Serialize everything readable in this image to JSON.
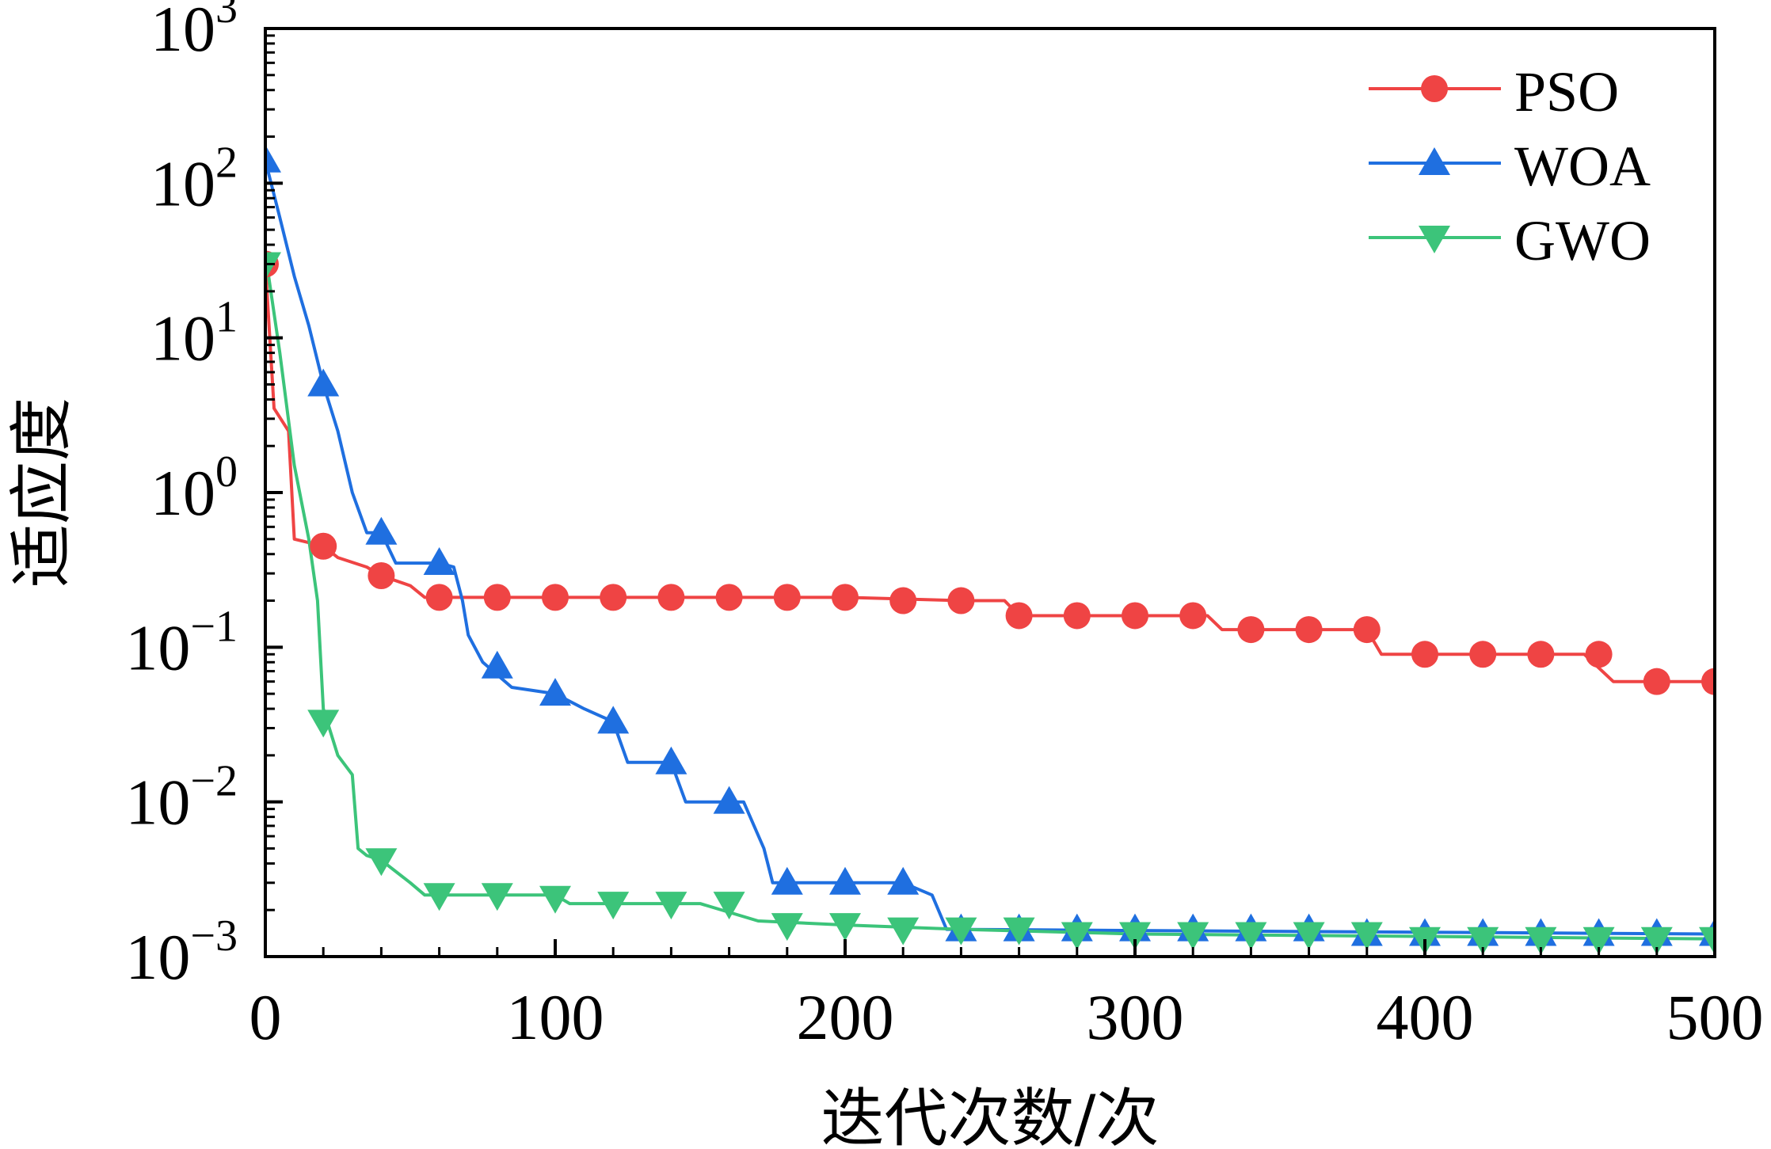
{
  "chart_data": {
    "type": "line",
    "xlabel": "迭代次数/次",
    "ylabel": "适应度",
    "xlim": [
      0,
      500
    ],
    "ylim": [
      0.001,
      1000
    ],
    "yscale": "log",
    "x_ticks": [
      0,
      100,
      200,
      300,
      400,
      500
    ],
    "y_ticks": [
      {
        "value": 1000,
        "base": "10",
        "exp": "3"
      },
      {
        "value": 100,
        "base": "10",
        "exp": "2"
      },
      {
        "value": 10,
        "base": "10",
        "exp": "1"
      },
      {
        "value": 1,
        "base": "10",
        "exp": "0"
      },
      {
        "value": 0.1,
        "base": "10",
        "exp": "−1"
      },
      {
        "value": 0.01,
        "base": "10",
        "exp": "−2"
      },
      {
        "value": 0.001,
        "base": "10",
        "exp": "−3"
      }
    ],
    "grid": false,
    "legend_position": "top-right",
    "series": [
      {
        "name": "PSO",
        "color": "#ef4444",
        "marker": "circle",
        "line": [
          [
            0,
            30
          ],
          [
            3,
            3.5
          ],
          [
            8,
            2.5
          ],
          [
            10,
            0.5
          ],
          [
            20,
            0.45
          ],
          [
            25,
            0.38
          ],
          [
            35,
            0.33
          ],
          [
            40,
            0.29
          ],
          [
            50,
            0.25
          ],
          [
            55,
            0.21
          ],
          [
            100,
            0.21
          ],
          [
            150,
            0.21
          ],
          [
            200,
            0.21
          ],
          [
            240,
            0.2
          ],
          [
            255,
            0.2
          ],
          [
            260,
            0.16
          ],
          [
            310,
            0.16
          ],
          [
            325,
            0.16
          ],
          [
            330,
            0.13
          ],
          [
            380,
            0.13
          ],
          [
            385,
            0.09
          ],
          [
            455,
            0.09
          ],
          [
            465,
            0.06
          ],
          [
            500,
            0.06
          ]
        ],
        "markers": [
          [
            0,
            30
          ],
          [
            20,
            0.45
          ],
          [
            40,
            0.29
          ],
          [
            60,
            0.21
          ],
          [
            80,
            0.21
          ],
          [
            100,
            0.21
          ],
          [
            120,
            0.21
          ],
          [
            140,
            0.21
          ],
          [
            160,
            0.21
          ],
          [
            180,
            0.21
          ],
          [
            200,
            0.21
          ],
          [
            220,
            0.2
          ],
          [
            240,
            0.2
          ],
          [
            260,
            0.16
          ],
          [
            280,
            0.16
          ],
          [
            300,
            0.16
          ],
          [
            320,
            0.16
          ],
          [
            340,
            0.13
          ],
          [
            360,
            0.13
          ],
          [
            380,
            0.13
          ],
          [
            400,
            0.09
          ],
          [
            420,
            0.09
          ],
          [
            440,
            0.09
          ],
          [
            460,
            0.09
          ],
          [
            480,
            0.06
          ],
          [
            500,
            0.06
          ]
        ]
      },
      {
        "name": "WOA",
        "color": "#1f6fe0",
        "marker": "triangle-up",
        "line": [
          [
            0,
            140
          ],
          [
            5,
            60
          ],
          [
            10,
            25
          ],
          [
            15,
            12
          ],
          [
            20,
            5
          ],
          [
            25,
            2.5
          ],
          [
            30,
            1
          ],
          [
            35,
            0.55
          ],
          [
            40,
            0.55
          ],
          [
            45,
            0.35
          ],
          [
            60,
            0.35
          ],
          [
            65,
            0.33
          ],
          [
            68,
            0.2
          ],
          [
            70,
            0.12
          ],
          [
            75,
            0.08
          ],
          [
            85,
            0.055
          ],
          [
            100,
            0.05
          ],
          [
            110,
            0.04
          ],
          [
            120,
            0.033
          ],
          [
            125,
            0.018
          ],
          [
            140,
            0.018
          ],
          [
            145,
            0.01
          ],
          [
            165,
            0.01
          ],
          [
            172,
            0.005
          ],
          [
            175,
            0.003
          ],
          [
            220,
            0.003
          ],
          [
            230,
            0.0025
          ],
          [
            235,
            0.0015
          ],
          [
            500,
            0.0014
          ]
        ],
        "markers": [
          [
            0,
            140
          ],
          [
            20,
            5
          ],
          [
            40,
            0.55
          ],
          [
            60,
            0.35
          ],
          [
            80,
            0.075
          ],
          [
            100,
            0.05
          ],
          [
            120,
            0.033
          ],
          [
            140,
            0.018
          ],
          [
            160,
            0.01
          ],
          [
            180,
            0.003
          ],
          [
            200,
            0.003
          ],
          [
            220,
            0.003
          ],
          [
            240,
            0.0015
          ],
          [
            260,
            0.0015
          ],
          [
            280,
            0.0015
          ],
          [
            300,
            0.0015
          ],
          [
            320,
            0.0015
          ],
          [
            340,
            0.0015
          ],
          [
            360,
            0.0015
          ],
          [
            380,
            0.0014
          ],
          [
            400,
            0.0014
          ],
          [
            420,
            0.0014
          ],
          [
            440,
            0.0014
          ],
          [
            460,
            0.0014
          ],
          [
            480,
            0.0014
          ],
          [
            500,
            0.0014
          ]
        ]
      },
      {
        "name": "GWO",
        "color": "#3cc47a",
        "marker": "triangle-down",
        "line": [
          [
            0,
            35
          ],
          [
            5,
            8
          ],
          [
            10,
            1.5
          ],
          [
            15,
            0.5
          ],
          [
            18,
            0.2
          ],
          [
            20,
            0.04
          ],
          [
            25,
            0.02
          ],
          [
            30,
            0.015
          ],
          [
            32,
            0.005
          ],
          [
            35,
            0.0045
          ],
          [
            40,
            0.0042
          ],
          [
            50,
            0.003
          ],
          [
            55,
            0.0025
          ],
          [
            100,
            0.0025
          ],
          [
            105,
            0.0022
          ],
          [
            150,
            0.0022
          ],
          [
            170,
            0.0017
          ],
          [
            200,
            0.0016
          ],
          [
            240,
            0.0015
          ],
          [
            300,
            0.0014
          ],
          [
            500,
            0.0013
          ]
        ],
        "markers": [
          [
            0,
            30
          ],
          [
            20,
            0.033
          ],
          [
            40,
            0.0042
          ],
          [
            60,
            0.0025
          ],
          [
            80,
            0.0025
          ],
          [
            100,
            0.0024
          ],
          [
            120,
            0.0022
          ],
          [
            140,
            0.0022
          ],
          [
            160,
            0.0022
          ],
          [
            180,
            0.0016
          ],
          [
            200,
            0.0016
          ],
          [
            220,
            0.0015
          ],
          [
            240,
            0.0015
          ],
          [
            260,
            0.0015
          ],
          [
            280,
            0.0014
          ],
          [
            300,
            0.0014
          ],
          [
            320,
            0.0014
          ],
          [
            340,
            0.0014
          ],
          [
            360,
            0.0014
          ],
          [
            380,
            0.0014
          ],
          [
            400,
            0.0013
          ],
          [
            420,
            0.0013
          ],
          [
            440,
            0.0013
          ],
          [
            460,
            0.0013
          ],
          [
            480,
            0.0013
          ],
          [
            500,
            0.0013
          ]
        ]
      }
    ]
  }
}
